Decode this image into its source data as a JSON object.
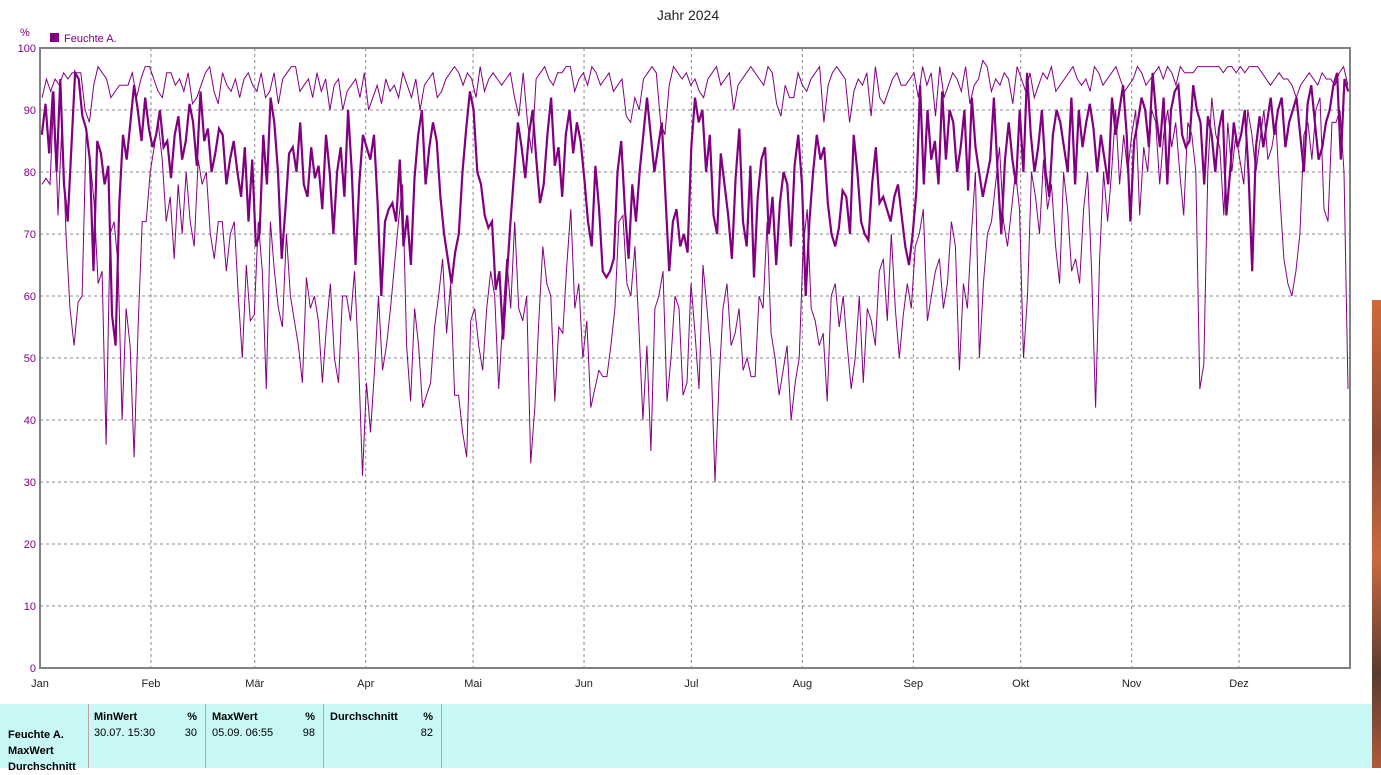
{
  "chart_data": {
    "type": "line",
    "title": "Jahr 2024",
    "ylabel": "%",
    "ylim": [
      0,
      100
    ],
    "yticks": [
      0,
      10,
      20,
      30,
      40,
      50,
      60,
      70,
      80,
      90,
      100
    ],
    "x_domain_days": [
      0,
      366
    ],
    "xtick_labels": [
      "Jan",
      "Feb",
      "Mär",
      "Apr",
      "Mai",
      "Jun",
      "Jul",
      "Aug",
      "Sep",
      "Okt",
      "Nov",
      "Dez"
    ],
    "xtick_days": [
      0,
      31,
      60,
      91,
      121,
      152,
      182,
      213,
      244,
      274,
      305,
      335
    ],
    "grid": true,
    "legend_position": "top-left",
    "legend": [
      "Feuchte A."
    ],
    "colors": {
      "series": "#800080",
      "grid": "#888888",
      "axis": "#808080"
    },
    "series": [
      {
        "name": "Feuchte A.",
        "average": [
          86,
          91,
          83,
          93,
          80,
          95,
          78,
          72,
          84,
          96,
          95,
          89,
          87,
          82,
          64,
          85,
          83,
          78,
          81,
          57,
          52,
          75,
          86,
          82,
          88,
          94,
          90,
          85,
          92,
          87,
          84,
          86,
          90,
          84,
          85,
          79,
          86,
          89,
          82,
          85,
          91,
          88,
          81,
          93,
          85,
          87,
          80,
          83,
          87,
          86,
          78,
          82,
          85,
          80,
          76,
          84,
          72,
          82,
          68,
          70,
          86,
          78,
          92,
          88,
          80,
          66,
          74,
          83,
          84,
          80,
          88,
          78,
          76,
          84,
          79,
          81,
          74,
          86,
          80,
          70,
          80,
          84,
          76,
          90,
          80,
          65,
          78,
          86,
          84,
          82,
          86,
          75,
          60,
          72,
          74,
          75,
          72,
          82,
          68,
          73,
          65,
          79,
          86,
          90,
          78,
          84,
          88,
          85,
          76,
          70,
          66,
          62,
          67,
          70,
          80,
          87,
          93,
          90,
          80,
          78,
          73,
          71,
          72,
          61,
          64,
          53,
          63,
          72,
          80,
          88,
          84,
          79,
          86,
          90,
          82,
          75,
          78,
          86,
          92,
          81,
          84,
          76,
          86,
          90,
          83,
          88,
          85,
          79,
          72,
          68,
          81,
          74,
          64,
          63,
          64,
          66,
          80,
          85,
          74,
          66,
          78,
          72,
          80,
          86,
          92,
          86,
          80,
          84,
          88,
          76,
          64,
          72,
          74,
          68,
          70,
          67,
          84,
          92,
          88,
          90,
          80,
          86,
          73,
          70,
          83,
          78,
          73,
          66,
          79,
          87,
          72,
          68,
          81,
          63,
          76,
          82,
          84,
          70,
          76,
          65,
          75,
          80,
          78,
          68,
          81,
          86,
          78,
          60,
          72,
          80,
          86,
          82,
          84,
          75,
          70,
          68,
          71,
          77,
          76,
          70,
          86,
          80,
          72,
          70,
          69,
          78,
          84,
          75,
          76,
          74,
          72,
          76,
          78,
          73,
          68,
          65,
          70,
          77,
          94,
          78,
          90,
          82,
          85,
          78,
          93,
          82,
          90,
          88,
          80,
          84,
          90,
          77,
          92,
          84,
          80,
          76,
          79,
          82,
          92,
          80,
          70,
          82,
          88,
          82,
          78,
          90,
          80,
          96,
          86,
          80,
          84,
          90,
          80,
          76,
          86,
          90,
          88,
          84,
          80,
          92,
          78,
          90,
          84,
          88,
          91,
          87,
          80,
          86,
          82,
          78,
          92,
          86,
          90,
          94,
          86,
          72,
          85,
          88,
          92,
          90,
          84,
          96,
          89,
          84,
          92,
          78,
          90,
          93,
          94,
          86,
          84,
          85,
          94,
          90,
          88,
          78,
          89,
          86,
          80,
          87,
          90,
          73,
          80,
          88,
          84,
          86,
          90,
          80,
          64,
          84,
          89,
          84,
          88,
          92,
          86,
          90,
          92,
          84,
          88,
          90,
          92,
          86,
          80,
          91,
          94,
          88,
          82,
          84,
          88,
          90,
          94,
          96,
          82,
          95,
          93
        ],
        "min": [
          78,
          79,
          78,
          93,
          73,
          88,
          70,
          58,
          52,
          59,
          60,
          86,
          82,
          75,
          62,
          64,
          36,
          70,
          72,
          65,
          40,
          58,
          52,
          34,
          55,
          72,
          72,
          80,
          84,
          88,
          82,
          72,
          76,
          66,
          78,
          70,
          80,
          72,
          68,
          82,
          78,
          80,
          70,
          66,
          72,
          72,
          64,
          70,
          72,
          60,
          50,
          65,
          56,
          57,
          72,
          64,
          45,
          72,
          64,
          58,
          55,
          70,
          60,
          56,
          52,
          46,
          63,
          58,
          60,
          56,
          46,
          55,
          62,
          50,
          46,
          60,
          60,
          56,
          64,
          50,
          31,
          46,
          38,
          48,
          60,
          48,
          52,
          58,
          65,
          72,
          78,
          52,
          43,
          58,
          52,
          42,
          44,
          46,
          55,
          60,
          66,
          54,
          62,
          44,
          44,
          38,
          34,
          56,
          58,
          52,
          48,
          58,
          64,
          60,
          45,
          56,
          66,
          58,
          72,
          58,
          56,
          60,
          33,
          42,
          56,
          68,
          62,
          60,
          43,
          55,
          54,
          65,
          74,
          58,
          62,
          50,
          56,
          42,
          45,
          48,
          47,
          47,
          52,
          58,
          72,
          73,
          62,
          60,
          68,
          55,
          40,
          52,
          35,
          58,
          60,
          64,
          43,
          50,
          60,
          58,
          44,
          46,
          62,
          54,
          45,
          65,
          58,
          50,
          30,
          46,
          58,
          62,
          52,
          54,
          58,
          48,
          50,
          47,
          47,
          60,
          58,
          72,
          54,
          50,
          44,
          48,
          52,
          40,
          46,
          50,
          68,
          74,
          58,
          56,
          52,
          54,
          43,
          60,
          62,
          55,
          60,
          52,
          45,
          50,
          60,
          46,
          58,
          56,
          52,
          64,
          66,
          56,
          70,
          58,
          50,
          57,
          62,
          58,
          68,
          70,
          74,
          56,
          60,
          64,
          66,
          58,
          62,
          72,
          68,
          48,
          62,
          58,
          70,
          80,
          50,
          62,
          70,
          72,
          78,
          84,
          72,
          68,
          74,
          80,
          74,
          50,
          60,
          80,
          76,
          70,
          82,
          74,
          78,
          68,
          62,
          80,
          74,
          64,
          66,
          62,
          74,
          80,
          64,
          42,
          66,
          80,
          72,
          80,
          90,
          78,
          86,
          80,
          86,
          90,
          73,
          84,
          80,
          90,
          88,
          78,
          86,
          90,
          84,
          88,
          80,
          73,
          88,
          86,
          80,
          45,
          49,
          80,
          92,
          86,
          84,
          73,
          88,
          80,
          86,
          82,
          78,
          90,
          86,
          80,
          85,
          90,
          82,
          84,
          88,
          76,
          66,
          62,
          60,
          64,
          70,
          86,
          88,
          82,
          90,
          92,
          74,
          72,
          88,
          88,
          90,
          80,
          45
        ],
        "max": [
          92,
          95,
          93,
          95,
          94,
          96,
          95,
          96,
          96,
          96,
          90,
          88,
          94,
          97,
          96,
          95,
          92,
          93,
          94,
          94,
          94,
          96,
          92,
          95,
          97,
          97,
          95,
          93,
          92,
          96,
          96,
          94,
          95,
          93,
          96,
          91,
          92,
          94,
          96,
          97,
          93,
          91,
          96,
          94,
          93,
          95,
          92,
          95,
          96,
          94,
          93,
          96,
          92,
          93,
          96,
          91,
          95,
          96,
          97,
          97,
          93,
          94,
          95,
          92,
          96,
          93,
          95,
          90,
          94,
          95,
          90,
          93,
          94,
          95,
          92,
          96,
          90,
          92,
          94,
          91,
          95,
          93,
          94,
          92,
          96,
          94,
          92,
          95,
          90,
          94,
          95,
          96,
          92,
          93,
          95,
          96,
          97,
          96,
          94,
          96,
          95,
          92,
          97,
          93,
          95,
          96,
          95,
          94,
          95,
          96,
          92,
          89,
          96,
          88,
          83,
          95,
          96,
          97,
          95,
          94,
          96,
          96,
          97,
          97,
          93,
          95,
          96,
          94,
          97,
          96,
          94,
          95,
          96,
          93,
          94,
          95,
          89,
          88,
          92,
          90,
          95,
          96,
          97,
          96,
          88,
          86,
          94,
          97,
          96,
          95,
          96,
          94,
          95,
          93,
          92,
          95,
          96,
          97,
          94,
          95,
          96,
          90,
          94,
          95,
          96,
          97,
          96,
          95,
          94,
          97,
          96,
          91,
          89,
          94,
          92,
          92,
          96,
          94,
          93,
          95,
          96,
          97,
          88,
          94,
          96,
          97,
          96,
          95,
          88,
          93,
          95,
          94,
          96,
          89,
          97,
          92,
          91,
          93,
          95,
          96,
          94,
          94,
          95,
          96,
          92,
          97,
          94,
          96,
          89,
          97,
          92,
          94,
          96,
          95,
          93,
          97,
          91,
          94,
          95,
          98,
          97,
          93,
          95,
          94,
          96,
          95,
          91,
          97,
          95,
          93,
          96,
          92,
          94,
          96,
          95,
          97,
          93,
          94,
          95,
          96,
          97,
          95,
          94,
          95,
          93,
          97,
          96,
          94,
          95,
          96,
          97,
          95,
          93,
          94,
          95,
          97,
          96,
          94,
          95,
          96,
          97,
          95,
          97,
          96,
          94,
          97,
          96,
          96,
          96,
          97,
          97,
          97,
          97,
          97,
          97,
          96,
          97,
          97,
          96,
          97,
          96,
          97,
          97,
          97,
          96,
          95,
          94,
          95,
          96,
          95,
          95,
          94,
          92,
          94,
          95,
          96,
          95,
          94,
          96,
          95,
          95,
          94,
          96,
          97,
          94
        ]
      }
    ]
  },
  "stats": {
    "row_labels": [
      "Feuchte A.",
      "MaxWert",
      "Durchschnitt"
    ],
    "min": {
      "header": "MinWert",
      "unit": "%",
      "date": "30.07.  15:30",
      "value": "30"
    },
    "max": {
      "header": "MaxWert",
      "unit": "%",
      "date": "05.09.  06:55",
      "value": "98"
    },
    "avg": {
      "header": "Durchschnitt",
      "unit": "%",
      "value": "82"
    }
  }
}
